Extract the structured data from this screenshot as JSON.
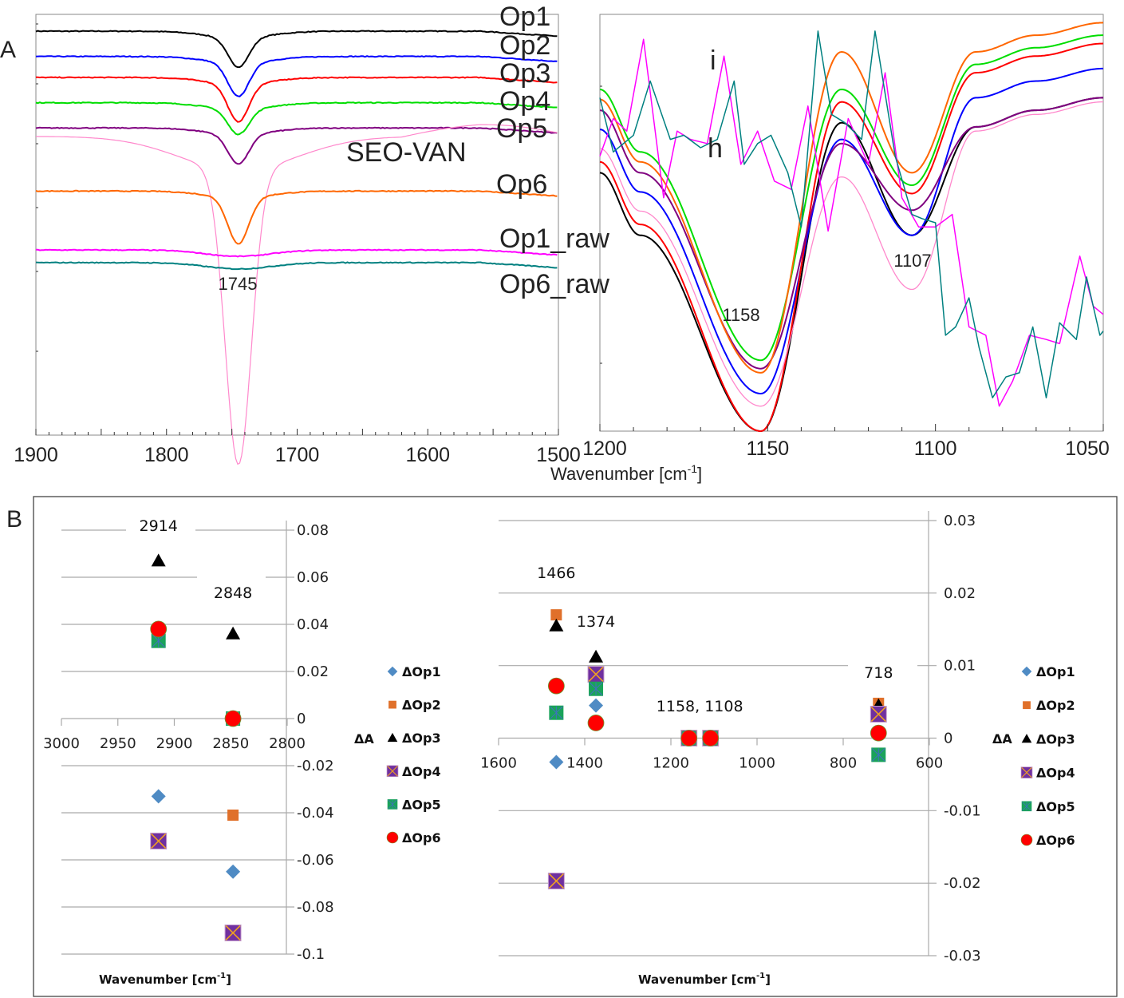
{
  "chart_data": [
    {
      "panel": "A",
      "subplot": "left",
      "type": "line",
      "title": "",
      "xlabel": "",
      "xlim": [
        1900,
        1500
      ],
      "xticks": [
        "1900",
        "1800",
        "1700",
        "1600",
        "1500"
      ],
      "annotations": [
        "1745",
        "SEO-VAN"
      ],
      "series": [
        {
          "name": "Op1",
          "color": "#000000",
          "baseline": 0.96,
          "peak_x": 1745,
          "depth": 0.07
        },
        {
          "name": "Op2",
          "color": "#0000ff",
          "baseline": 0.9,
          "peak_x": 1745,
          "depth": 0.08
        },
        {
          "name": "Op3",
          "color": "#ff0000",
          "baseline": 0.85,
          "peak_x": 1745,
          "depth": 0.09
        },
        {
          "name": "Op4",
          "color": "#00dd00",
          "baseline": 0.79,
          "peak_x": 1745,
          "depth": 0.06
        },
        {
          "name": "Op5",
          "color": "#800080",
          "baseline": 0.73,
          "peak_x": 1745,
          "depth": 0.07
        },
        {
          "name": "SEO-VAN",
          "color": "#ff88cc",
          "baseline": 0.71,
          "peak_x": 1745,
          "depth": 0.7
        },
        {
          "name": "Op6",
          "color": "#ff6600",
          "baseline": 0.58,
          "peak_x": 1745,
          "depth": 0.11
        },
        {
          "name": "Op1_raw",
          "color": "#ff00ff",
          "baseline": 0.44,
          "peak_x": 1745,
          "depth": 0.0
        },
        {
          "name": "Op6_raw",
          "color": "#008080",
          "baseline": 0.41,
          "peak_x": 1745,
          "depth": 0.0
        }
      ]
    },
    {
      "panel": "A",
      "subplot": "right",
      "type": "line",
      "xlabel": "Wavenumber [cm⁻¹]",
      "xlim": [
        1200,
        1050
      ],
      "xticks": [
        "1200",
        "1150",
        "1100",
        "1050"
      ],
      "annotations": [
        "i",
        "h",
        "1158",
        "1107"
      ],
      "series": [
        {
          "name": "Op1",
          "color": "#000000",
          "min_1158": 0.0,
          "peak_1128": 0.74,
          "min_1107": 0.47,
          "end": 0.8
        },
        {
          "name": "Op2",
          "color": "#0000ff",
          "min_1158": 0.09,
          "peak_1128": 0.7,
          "min_1107": 0.47,
          "end": 0.87
        },
        {
          "name": "Op3",
          "color": "#ff0000",
          "min_1158": 0.0,
          "peak_1128": 0.79,
          "min_1107": 0.57,
          "end": 0.93
        },
        {
          "name": "Op4",
          "color": "#00dd00",
          "min_1158": 0.17,
          "peak_1128": 0.82,
          "min_1107": 0.59,
          "end": 0.95
        },
        {
          "name": "Op5",
          "color": "#800080",
          "min_1158": 0.15,
          "peak_1128": 0.69,
          "min_1107": 0.53,
          "end": 0.8
        },
        {
          "name": "SEO-VAN",
          "color": "#ff88cc",
          "min_1158": 0.06,
          "peak_1128": 0.61,
          "min_1107": 0.34,
          "end": 0.79
        },
        {
          "name": "Op6",
          "color": "#ff6600",
          "min_1158": 0.14,
          "peak_1128": 0.91,
          "min_1107": 0.62,
          "end": 0.98
        },
        {
          "name": "Op1_raw",
          "color": "#ff00ff"
        },
        {
          "name": "Op6_raw",
          "color": "#008080"
        }
      ]
    },
    {
      "panel": "B",
      "subplot": "left",
      "type": "scatter",
      "xlabel": "Wavenumber [cm⁻¹]",
      "ylabel": "ΔA",
      "xlim": [
        3000,
        2800
      ],
      "ylim": [
        -0.1,
        0.08
      ],
      "xticks": [
        "3000",
        "2950",
        "2900",
        "2850",
        "2800"
      ],
      "yticks": [
        "0.08",
        "0.06",
        "0.04",
        "0.02",
        "0",
        "-0.02",
        "-0.04",
        "-0.06",
        "-0.08",
        "-0.1"
      ],
      "annotations": [
        {
          "text": "2914",
          "x": 2914
        },
        {
          "text": "2848",
          "x": 2848
        }
      ],
      "grid": true,
      "legend_position": "right",
      "series": [
        {
          "name": "ΔOp1",
          "marker": "diamond",
          "color": "#4f8bc4",
          "points": [
            [
              2914,
              -0.033
            ],
            [
              2848,
              -0.065
            ]
          ]
        },
        {
          "name": "ΔOp2",
          "marker": "square",
          "color": "#e0702a",
          "points": [
            [
              2848,
              -0.041
            ]
          ]
        },
        {
          "name": "ΔOp3",
          "marker": "triangle",
          "color": "#000000",
          "points": [
            [
              2914,
              0.067
            ],
            [
              2848,
              0.036
            ]
          ]
        },
        {
          "name": "ΔOp4",
          "marker": "xsquare",
          "color": "#7030a0",
          "points": [
            [
              2914,
              -0.052
            ],
            [
              2848,
              -0.091
            ]
          ]
        },
        {
          "name": "ΔOp5",
          "marker": "asterisk-square",
          "color": "#1aa35a",
          "points": [
            [
              2914,
              0.033
            ],
            [
              2848,
              0.0
            ]
          ]
        },
        {
          "name": "ΔOp6",
          "marker": "circle",
          "color": "#ff0000",
          "points": [
            [
              2914,
              0.038
            ],
            [
              2848,
              0.0
            ]
          ]
        }
      ]
    },
    {
      "panel": "B",
      "subplot": "right",
      "type": "scatter",
      "xlabel": "Wavenumber [cm⁻¹]",
      "ylabel": "ΔA",
      "xlim": [
        1600,
        600
      ],
      "ylim": [
        -0.03,
        0.03
      ],
      "xticks": [
        "1600",
        "1400",
        "1200",
        "1000",
        "800",
        "600"
      ],
      "yticks": [
        "0.03",
        "0.02",
        "0.01",
        "0",
        "-0.01",
        "-0.02",
        "-0.03"
      ],
      "annotations": [
        {
          "text": "1466",
          "x": 1466
        },
        {
          "text": "1374",
          "x": 1374
        },
        {
          "text": "1158, 1108",
          "x": 1133
        },
        {
          "text": "718",
          "x": 718
        }
      ],
      "grid": true,
      "legend_position": "right",
      "series": [
        {
          "name": "ΔOp1",
          "marker": "diamond",
          "color": "#4f8bc4",
          "points": [
            [
              1466,
              -0.0033
            ],
            [
              1374,
              0.0045
            ],
            [
              1158,
              0.0
            ],
            [
              1108,
              0.0
            ]
          ]
        },
        {
          "name": "ΔOp2",
          "marker": "square",
          "color": "#e0702a",
          "points": [
            [
              1466,
              0.017
            ],
            [
              1374,
              0.0087
            ],
            [
              1158,
              0.0
            ],
            [
              1108,
              0.0
            ],
            [
              718,
              0.0048
            ]
          ]
        },
        {
          "name": "ΔOp3",
          "marker": "triangle",
          "color": "#000000",
          "points": [
            [
              1466,
              0.0155
            ],
            [
              1374,
              0.0112
            ],
            [
              1158,
              0.0
            ],
            [
              1108,
              0.0
            ],
            [
              718,
              0.0045
            ]
          ]
        },
        {
          "name": "ΔOp4",
          "marker": "xsquare",
          "color": "#7030a0",
          "points": [
            [
              1466,
              -0.0197
            ],
            [
              1374,
              0.0088
            ],
            [
              1158,
              0.0
            ],
            [
              1108,
              0.0
            ],
            [
              718,
              0.0033
            ]
          ]
        },
        {
          "name": "ΔOp5",
          "marker": "asterisk-square",
          "color": "#1aa35a",
          "points": [
            [
              1466,
              0.0035
            ],
            [
              1374,
              0.0068
            ],
            [
              1158,
              0.0
            ],
            [
              1108,
              0.0
            ],
            [
              718,
              -0.0023
            ]
          ]
        },
        {
          "name": "ΔOp6",
          "marker": "circle",
          "color": "#ff0000",
          "points": [
            [
              1466,
              0.0072
            ],
            [
              1374,
              0.0021
            ],
            [
              1158,
              0.0
            ],
            [
              1108,
              0.0
            ],
            [
              718,
              0.0007
            ]
          ]
        }
      ]
    }
  ],
  "labels": {
    "panel_a": "A",
    "panel_b": "B",
    "a_xlabel": "Wavenumber [cm",
    "a_xlabel_sup": "-1",
    "a_xlabel_end": "]",
    "b_xlabel": "Wavenumber [cm",
    "b_xlabel_sup": "-1",
    "b_xlabel_end": "]",
    "b_ylabel": "ΔA"
  }
}
